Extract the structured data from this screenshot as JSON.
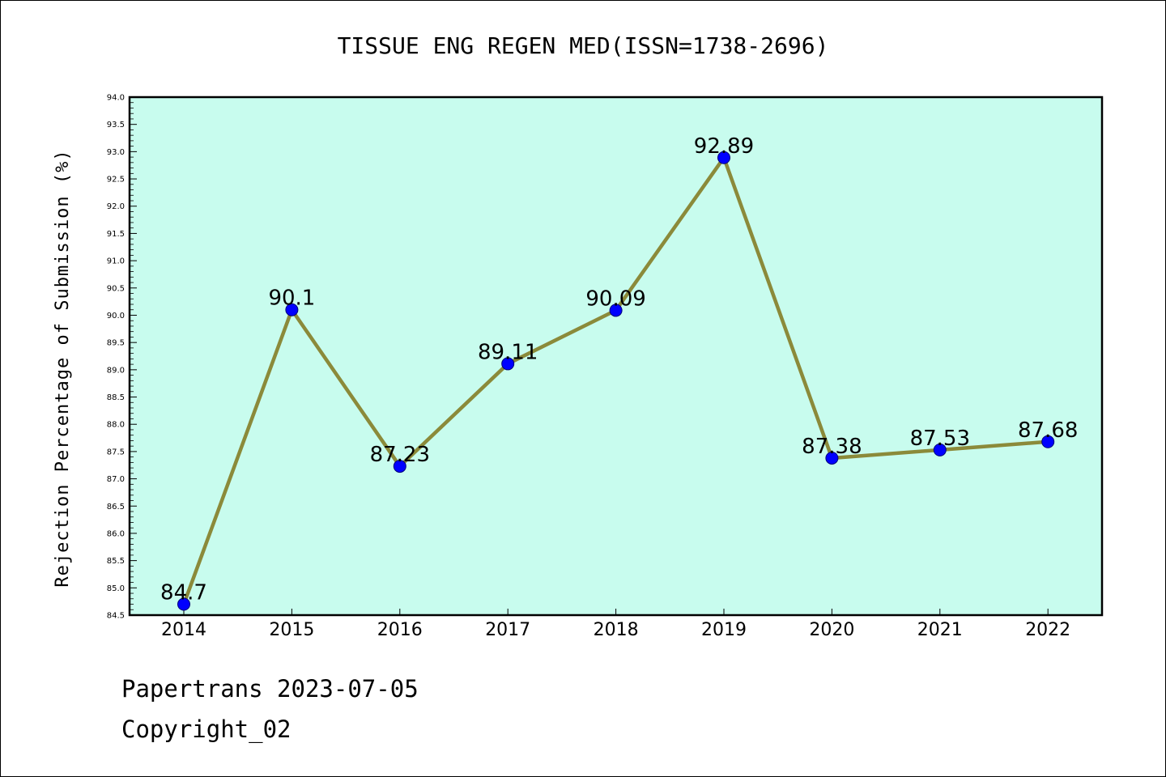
{
  "chart_data": {
    "type": "line",
    "title": "TISSUE ENG REGEN MED(ISSN=1738-2696)",
    "xlabel": "",
    "ylabel": "Rejection Percentage of Submission (%)",
    "categories": [
      "2014",
      "2015",
      "2016",
      "2017",
      "2018",
      "2019",
      "2020",
      "2021",
      "2022"
    ],
    "series": [
      {
        "values": [
          84.7,
          90.1,
          87.23,
          89.11,
          90.09,
          92.89,
          87.38,
          87.53,
          87.68
        ],
        "data_labels": [
          "84.7",
          "90.1",
          "87.23",
          "89.11",
          "90.09",
          "92.89",
          "87.38",
          "87.53",
          "87.68"
        ],
        "line_color": "#8b8a3a",
        "marker_color": "#0000ff"
      }
    ],
    "ylim": [
      84.5,
      94.0
    ],
    "yticks": [
      "84.5",
      "85.0",
      "85.5",
      "86.0",
      "86.5",
      "87.0",
      "87.5",
      "88.0",
      "88.5",
      "89.0",
      "89.5",
      "90.0",
      "90.5",
      "91.0",
      "91.5",
      "92.0",
      "92.5",
      "93.0",
      "93.5",
      "94.0"
    ],
    "grid": false,
    "plot_background": "#c8fcee"
  },
  "footer": {
    "line1": "Papertrans 2023-07-05",
    "line2": "Copyright_02"
  }
}
